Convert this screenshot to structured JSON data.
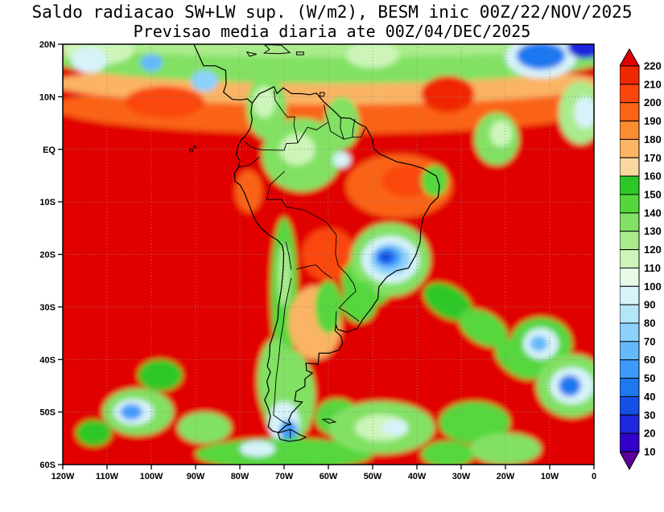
{
  "title": {
    "line1": "Saldo radiacao SW+LW sup. (W/m2), BESM inic 00Z/22/NOV/2025",
    "line2": "Previsao media diaria ate 00Z/04/DEC/2025"
  },
  "colorbar": {
    "levels": [
      10,
      20,
      30,
      40,
      50,
      60,
      70,
      80,
      90,
      100,
      110,
      120,
      130,
      140,
      150,
      160,
      170,
      180,
      190,
      200,
      210,
      220
    ],
    "colors_low_to_high": [
      "#5a0096",
      "#3200c8",
      "#1e28dc",
      "#1450e6",
      "#1e78f0",
      "#3c9bfa",
      "#64b9fa",
      "#8cd2fa",
      "#b4e6fa",
      "#d7f3fa",
      "#e6fae6",
      "#cdf5b9",
      "#aaeb8c",
      "#82e164",
      "#55d73c",
      "#2dc828",
      "#fad7a0",
      "#fab464",
      "#fa8c32",
      "#fa6414",
      "#fa460a",
      "#f02800",
      "#e10000"
    ]
  },
  "chart_data": {
    "type": "heatmap",
    "title": "Saldo radiacao SW+LW sup. (W/m2), BESM inic 00Z/22/NOV/2025",
    "subtitle": "Previsao media diaria ate 00Z/04/DEC/2025",
    "units": "W/m2",
    "axes": {
      "lon_range": [
        -120,
        0
      ],
      "lat_range": [
        -60,
        20
      ],
      "lat_ticks": [
        {
          "label": "20N",
          "value": 20
        },
        {
          "label": "10N",
          "value": 10
        },
        {
          "label": "EQ",
          "value": 0
        },
        {
          "label": "10S",
          "value": -10
        },
        {
          "label": "20S",
          "value": -20
        },
        {
          "label": "30S",
          "value": -30
        },
        {
          "label": "40S",
          "value": -40
        },
        {
          "label": "50S",
          "value": -50
        },
        {
          "label": "60S",
          "value": -60
        }
      ],
      "lon_ticks": [
        {
          "label": "120W",
          "value": -120
        },
        {
          "label": "110W",
          "value": -110
        },
        {
          "label": "100W",
          "value": -100
        },
        {
          "label": "90W",
          "value": -90
        },
        {
          "label": "80W",
          "value": -80
        },
        {
          "label": "70W",
          "value": -70
        },
        {
          "label": "60W",
          "value": -60
        },
        {
          "label": "50W",
          "value": -50
        },
        {
          "label": "40W",
          "value": -40
        },
        {
          "label": "30W",
          "value": -30
        },
        {
          "label": "20W",
          "value": -20
        },
        {
          "label": "10W",
          "value": -10
        },
        {
          "label": "0",
          "value": 0
        }
      ],
      "grid": true
    },
    "levels": [
      10,
      20,
      30,
      40,
      50,
      60,
      70,
      80,
      90,
      100,
      110,
      120,
      130,
      140,
      150,
      160,
      170,
      180,
      190,
      200,
      210,
      220
    ],
    "background_value": 225,
    "features": [
      {
        "lon": -60,
        "lat": 8,
        "rx": 62,
        "ry": 5,
        "v": 195
      },
      {
        "lon": -60,
        "lat": 12.5,
        "rx": 62,
        "ry": 4,
        "v": 170
      },
      {
        "lon": -60,
        "lat": 17,
        "rx": 62,
        "ry": 4.5,
        "v": 135
      },
      {
        "lon": -60,
        "lat": 19.8,
        "rx": 62,
        "ry": 2.2,
        "v": 120
      },
      {
        "lon": -112,
        "lat": 19,
        "rx": 8,
        "ry": 3,
        "v": 115
      },
      {
        "lon": -114,
        "lat": 17,
        "rx": 4,
        "ry": 2.5,
        "v": 95
      },
      {
        "lon": -100,
        "lat": 16.5,
        "rx": 2.5,
        "ry": 1.6,
        "v": 60
      },
      {
        "lon": -88,
        "lat": 13,
        "rx": 3,
        "ry": 2,
        "v": 75
      },
      {
        "lon": -97,
        "lat": 9,
        "rx": 9,
        "ry": 3,
        "v": 205
      },
      {
        "lon": -33,
        "lat": 10.5,
        "rx": 6,
        "ry": 3.5,
        "v": 210
      },
      {
        "lon": -74,
        "lat": 8,
        "rx": 4.5,
        "ry": 6,
        "v": 135
      },
      {
        "lon": -74.5,
        "lat": 9,
        "rx": 2.5,
        "ry": 3,
        "v": 115
      },
      {
        "lon": -57,
        "lat": 5,
        "rx": 4,
        "ry": 5,
        "v": 135
      },
      {
        "lon": -50,
        "lat": 18,
        "rx": 6,
        "ry": 2.5,
        "v": 115
      },
      {
        "lon": -22,
        "lat": 2,
        "rx": 5,
        "ry": 5,
        "v": 130
      },
      {
        "lon": -21,
        "lat": 3,
        "rx": 2.5,
        "ry": 2.5,
        "v": 110
      },
      {
        "lon": -3,
        "lat": 7,
        "rx": 5,
        "ry": 6,
        "v": 125
      },
      {
        "lon": -2,
        "lat": 7,
        "rx": 2.5,
        "ry": 3,
        "v": 95
      },
      {
        "lon": -12,
        "lat": 17.5,
        "rx": 8,
        "ry": 4,
        "v": 90
      },
      {
        "lon": -12,
        "lat": 17.8,
        "rx": 5.5,
        "ry": 2.6,
        "v": 45
      },
      {
        "lon": -2,
        "lat": 19.5,
        "rx": 4,
        "ry": 2.2,
        "v": 25
      },
      {
        "lon": -66,
        "lat": -1,
        "rx": 9,
        "ry": 7,
        "v": 135
      },
      {
        "lon": -67,
        "lat": 0,
        "rx": 4,
        "ry": 3,
        "v": 115
      },
      {
        "lon": -57,
        "lat": -2,
        "rx": 2,
        "ry": 1.5,
        "v": 95
      },
      {
        "lon": -44,
        "lat": -7,
        "rx": 12,
        "ry": 6,
        "v": 190
      },
      {
        "lon": -42,
        "lat": -6,
        "rx": 6,
        "ry": 3,
        "v": 205
      },
      {
        "lon": -36,
        "lat": -6,
        "rx": 3,
        "ry": 3,
        "v": 140
      },
      {
        "lon": -78,
        "lat": -8,
        "rx": 3,
        "ry": 4,
        "v": 190
      },
      {
        "lon": -60,
        "lat": -20,
        "rx": 6,
        "ry": 5,
        "v": 200
      },
      {
        "lon": -51,
        "lat": -25,
        "rx": 6,
        "ry": 5,
        "v": 145
      },
      {
        "lon": -46,
        "lat": -21,
        "rx": 9,
        "ry": 7,
        "v": 135
      },
      {
        "lon": -46,
        "lat": -21,
        "rx": 6.5,
        "ry": 4.5,
        "v": 95
      },
      {
        "lon": -46,
        "lat": -21,
        "rx": 4.5,
        "ry": 3,
        "v": 75
      },
      {
        "lon": -46.5,
        "lat": -20.5,
        "rx": 3,
        "ry": 2,
        "v": 50
      },
      {
        "lon": -47,
        "lat": -20.5,
        "rx": 1.8,
        "ry": 1.2,
        "v": 30
      },
      {
        "lon": -70,
        "lat": -27,
        "rx": 3,
        "ry": 14,
        "v": 140
      },
      {
        "lon": -70,
        "lat": -24,
        "rx": 1.5,
        "ry": 6,
        "v": 120
      },
      {
        "lon": -63,
        "lat": -33,
        "rx": 6,
        "ry": 7,
        "v": 175
      },
      {
        "lon": -60,
        "lat": -30,
        "rx": 3,
        "ry": 5,
        "v": 145
      },
      {
        "lon": -53,
        "lat": -29,
        "rx": 4,
        "ry": 4,
        "v": 145
      },
      {
        "lon": -72,
        "lat": -44,
        "rx": 4,
        "ry": 8,
        "v": 130
      },
      {
        "lon": -69,
        "lat": -47,
        "rx": 6,
        "ry": 9,
        "v": 135
      },
      {
        "lon": -70,
        "lat": -52,
        "rx": 3.5,
        "ry": 4,
        "v": 95
      },
      {
        "lon": -69,
        "lat": -53.5,
        "rx": 2,
        "ry": 2,
        "v": 55
      },
      {
        "lon": -58,
        "lat": -51,
        "rx": 5,
        "ry": 3.5,
        "v": 140
      },
      {
        "lon": -103,
        "lat": -50,
        "rx": 8,
        "ry": 4.5,
        "v": 130
      },
      {
        "lon": -104,
        "lat": -50,
        "rx": 4.5,
        "ry": 2.5,
        "v": 90
      },
      {
        "lon": -104.5,
        "lat": -50,
        "rx": 2.5,
        "ry": 1.5,
        "v": 55
      },
      {
        "lon": -88,
        "lat": -53,
        "rx": 6,
        "ry": 3,
        "v": 135
      },
      {
        "lon": -98,
        "lat": -43,
        "rx": 5,
        "ry": 3,
        "v": 150
      },
      {
        "lon": -113,
        "lat": -54,
        "rx": 4,
        "ry": 2.5,
        "v": 150
      },
      {
        "lon": -70,
        "lat": -58,
        "rx": 20,
        "ry": 3,
        "v": 140
      },
      {
        "lon": -76,
        "lat": -57,
        "rx": 4,
        "ry": 1.5,
        "v": 95
      },
      {
        "lon": -48,
        "lat": -53,
        "rx": 12,
        "ry": 5,
        "v": 135
      },
      {
        "lon": -48,
        "lat": -53,
        "rx": 6,
        "ry": 2.5,
        "v": 115
      },
      {
        "lon": -45,
        "lat": -53,
        "rx": 3,
        "ry": 1.5,
        "v": 95
      },
      {
        "lon": -27,
        "lat": -52,
        "rx": 8,
        "ry": 4,
        "v": 140
      },
      {
        "lon": -33,
        "lat": -58,
        "rx": 6,
        "ry": 2.5,
        "v": 140
      },
      {
        "lon": -20,
        "lat": -57,
        "rx": 8,
        "ry": 3,
        "v": 135
      },
      {
        "lon": -33,
        "lat": -29,
        "rx": 6,
        "ry": 3,
        "v": 150,
        "rot": 30
      },
      {
        "lon": -25,
        "lat": -34,
        "rx": 6,
        "ry": 3,
        "v": 145,
        "rot": 30
      },
      {
        "lon": -17,
        "lat": -40,
        "rx": 6,
        "ry": 3,
        "v": 140,
        "rot": 35
      },
      {
        "lon": -12,
        "lat": -37,
        "rx": 7,
        "ry": 5,
        "v": 140
      },
      {
        "lon": -12,
        "lat": -37,
        "rx": 4,
        "ry": 3,
        "v": 95
      },
      {
        "lon": -12.5,
        "lat": -37,
        "rx": 2,
        "ry": 1.5,
        "v": 60
      },
      {
        "lon": -5,
        "lat": -45,
        "rx": 8,
        "ry": 6,
        "v": 135
      },
      {
        "lon": -5,
        "lat": -45,
        "rx": 5,
        "ry": 3.5,
        "v": 90
      },
      {
        "lon": -5.5,
        "lat": -45,
        "rx": 2.5,
        "ry": 2,
        "v": 45
      }
    ]
  }
}
